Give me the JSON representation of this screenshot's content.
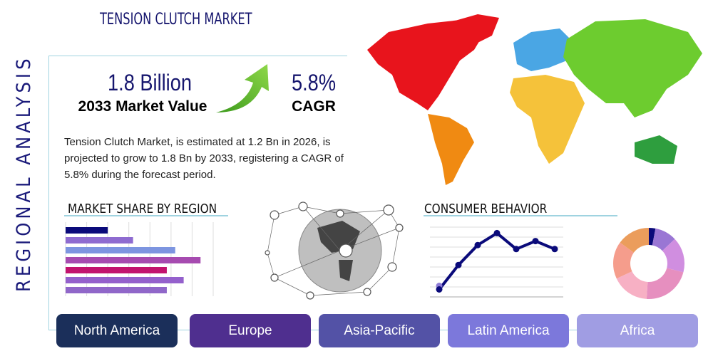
{
  "title": "TENSION CLUTCH MARKET",
  "side_label": "REGIONAL ANALYSIS",
  "market_value": {
    "value": "1.8 Billion",
    "label": "2033 Market Value"
  },
  "cagr": {
    "value": "5.8%",
    "label": "CAGR"
  },
  "description": "Tension Clutch Market, is estimated at 1.2 Bn in 2026, is projected to grow to 1.8 Bn by 2033, registering a CAGR of 5.8% during the forecast period.",
  "sections": {
    "market_share": "MARKET SHARE BY REGION",
    "consumer": "CONSUMER BEHAVIOR"
  },
  "regions": [
    {
      "label": "North America",
      "color": "#1b2f5a"
    },
    {
      "label": "Europe",
      "color": "#4f2f8f"
    },
    {
      "label": "Asia-Pacific",
      "color": "#5352a6"
    },
    {
      "label": "Latin America",
      "color": "#7c78db"
    },
    {
      "label": "Africa",
      "color": "#a09de3"
    }
  ],
  "chart_data": [
    {
      "type": "bar",
      "orientation": "horizontal",
      "values": [
        2,
        3.2,
        5.2,
        6.4,
        4.8,
        5.6,
        4.8
      ],
      "colors": [
        "#0a0a7a",
        "#8e6bd0",
        "#7d95e0",
        "#a64bb0",
        "#c2136e",
        "#9460cc",
        "#9067c9"
      ],
      "xlim": [
        0,
        7
      ],
      "grid": true
    },
    {
      "type": "line",
      "values": [
        0.75,
        3.2,
        5.2,
        6.4,
        4.8,
        5.6,
        4.8
      ],
      "ylim": [
        0,
        7
      ],
      "grid": true,
      "color": "#0a0a7a"
    },
    {
      "type": "pie",
      "donut": true,
      "values": [
        3,
        10,
        16,
        22,
        17,
        17,
        15
      ],
      "colors": [
        "#0a0a7a",
        "#9a76d4",
        "#d08ee0",
        "#e68fbf",
        "#f7b0c4",
        "#f59d8c",
        "#eb9d5c"
      ]
    }
  ]
}
